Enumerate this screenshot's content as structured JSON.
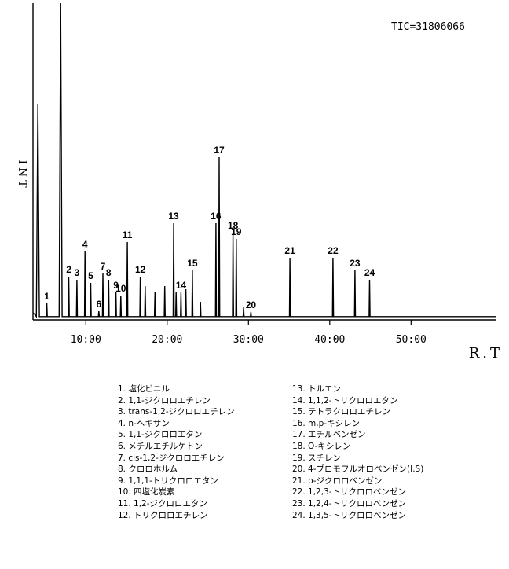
{
  "chart_data": {
    "type": "line",
    "annotation": "TIC=31806066",
    "ylabel": "INT",
    "xlabel": "R.T",
    "x_ticks": [
      "10:00",
      "20:00",
      "30:00",
      "40:00",
      "50:00"
    ],
    "x_tick_values": [
      10,
      20,
      30,
      40,
      50
    ],
    "xlim": [
      3.5,
      60.5
    ],
    "ylim": [
      0,
      100
    ],
    "solvent_peaks": [
      {
        "rt": 4.1,
        "height": 68
      },
      {
        "rt": 6.9,
        "height": 100
      }
    ],
    "peaks": [
      {
        "label": "1",
        "rt": 5.2,
        "height": 4.5
      },
      {
        "label": "2",
        "rt": 7.9,
        "height": 13
      },
      {
        "label": "3",
        "rt": 8.9,
        "height": 12
      },
      {
        "label": "4",
        "rt": 9.9,
        "height": 21
      },
      {
        "label": "5",
        "rt": 10.6,
        "height": 11
      },
      {
        "label": "6",
        "rt": 11.6,
        "height": 2
      },
      {
        "label": "7",
        "rt": 12.1,
        "height": 14
      },
      {
        "label": "8",
        "rt": 12.8,
        "height": 12
      },
      {
        "label": "9",
        "rt": 13.7,
        "height": 8
      },
      {
        "label": "10",
        "rt": 14.3,
        "height": 7
      },
      {
        "label": "11",
        "rt": 15.1,
        "height": 24
      },
      {
        "label": "12",
        "rt": 16.7,
        "height": 13
      },
      {
        "label": "13",
        "rt": 20.8,
        "height": 30
      },
      {
        "label": "14",
        "rt": 21.7,
        "height": 8
      },
      {
        "label": "15",
        "rt": 23.1,
        "height": 15
      },
      {
        "label": "16",
        "rt": 26.0,
        "height": 30
      },
      {
        "label": "17",
        "rt": 26.4,
        "height": 51
      },
      {
        "label": "18",
        "rt": 28.1,
        "height": 27
      },
      {
        "label": "19",
        "rt": 28.5,
        "height": 25
      },
      {
        "label": "20",
        "rt": 30.3,
        "height": 1.8
      },
      {
        "label": "21",
        "rt": 35.1,
        "height": 19
      },
      {
        "label": "22",
        "rt": 40.4,
        "height": 19
      },
      {
        "label": "23",
        "rt": 43.1,
        "height": 15
      },
      {
        "label": "24",
        "rt": 44.9,
        "height": 12
      }
    ],
    "minor_peaks": [
      {
        "rt": 17.3,
        "height": 10
      },
      {
        "rt": 18.5,
        "height": 8
      },
      {
        "rt": 19.7,
        "height": 10
      },
      {
        "rt": 21.1,
        "height": 8
      },
      {
        "rt": 22.3,
        "height": 9
      },
      {
        "rt": 24.1,
        "height": 5
      },
      {
        "rt": 29.4,
        "height": 3.2
      }
    ],
    "legend": [
      "1. 塩化ビニル",
      "2. 1,1-ジクロロエチレン",
      "3. trans-1,2-ジクロロエチレン",
      "4. n-ヘキサン",
      "5. 1,1-ジクロロエタン",
      "6. メチルエチルケトン",
      "7. cis-1,2-ジクロロエチレン",
      "8. クロロホルム",
      "9. 1,1,1-トリクロロエタン",
      "10. 四塩化炭素",
      "11. 1,2-ジクロロエタン",
      "12. トリクロロエチレン",
      "13. トルエン",
      "14. 1,1,2-トリクロロエタン",
      "15. テトラクロロエチレン",
      "16. m,p-キシレン",
      "17. エチルベンゼン",
      "18. O-キシレン",
      "19. スチレン",
      "20. 4-ブロモフルオロベンゼン(I.S)",
      "21. p-ジクロロベンゼン",
      "22. 1,2,3-トリクロロベンゼン",
      "23. 1,2,4-トリクロロベンゼン",
      "24. 1,3,5-トリクロロベンゼン"
    ]
  }
}
